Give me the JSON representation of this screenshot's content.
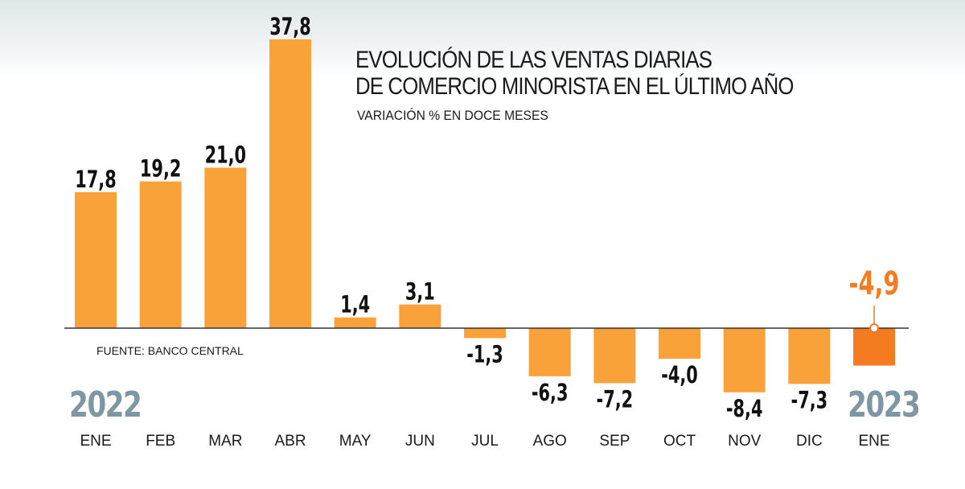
{
  "title_lines": [
    "EVOLUCIÓN DE LAS VENTAS DIARIAS",
    "DE COMERCIO MINORISTA EN EL ÚLTIMO AÑO"
  ],
  "subtitle": "VARIACIÓN % EN DOCE MESES",
  "source": "FUENTE: BANCO CENTRAL",
  "year_start": "2022",
  "year_end": "2023",
  "colors": {
    "bar": "#f9a23a",
    "highlight": "#f47b20",
    "axis": "#333333",
    "label": "#111111",
    "year": "#7f97a3"
  },
  "chart_data": {
    "type": "bar",
    "categories": [
      "ENE",
      "FEB",
      "MAR",
      "ABR",
      "MAY",
      "JUN",
      "JUL",
      "AGO",
      "SEP",
      "OCT",
      "NOV",
      "DIC",
      "ENE"
    ],
    "values": [
      17.8,
      19.2,
      21.0,
      37.8,
      1.4,
      3.1,
      -1.3,
      -6.3,
      -7.2,
      -4.0,
      -8.4,
      -7.3,
      -4.9
    ],
    "value_labels": [
      "17,8",
      "19,2",
      "21,0",
      "37,8",
      "1,4",
      "3,1",
      "-1,3",
      "-6,3",
      "-7,2",
      "-4,0",
      "-8,4",
      "-7,3",
      "-4,9"
    ],
    "highlight_index": 12,
    "ylim": [
      -10,
      38
    ],
    "grid": false,
    "legend": "none"
  }
}
